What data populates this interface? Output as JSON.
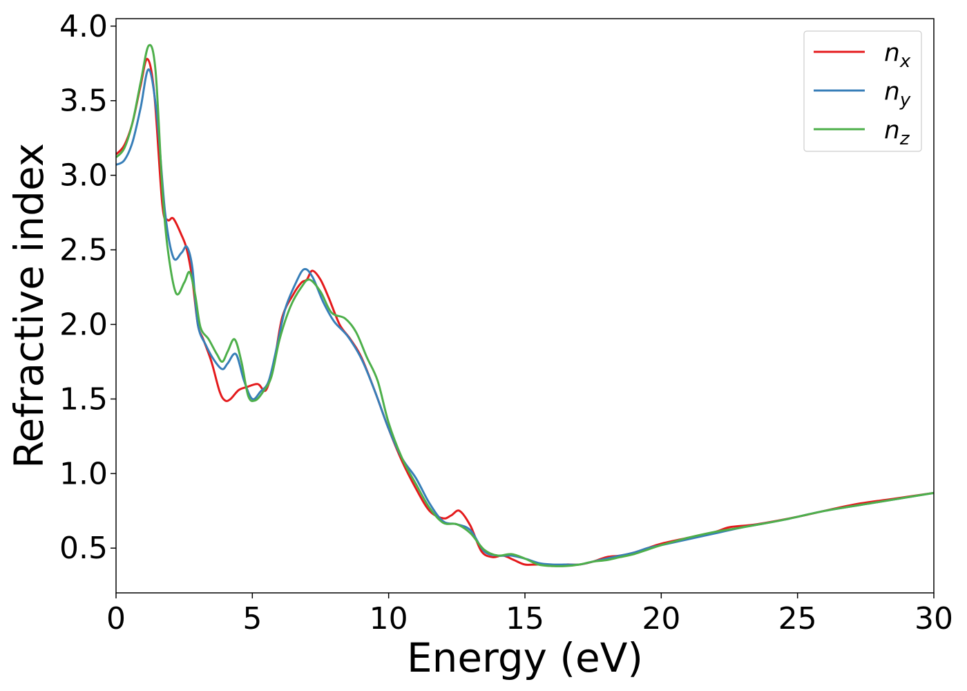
{
  "chart_data": {
    "type": "line",
    "title": "",
    "xlabel": "Energy (eV)",
    "ylabel": "Refractive index",
    "xlim": [
      0,
      30
    ],
    "ylim": [
      0.2,
      4.05
    ],
    "xticks": [
      0,
      5,
      10,
      15,
      20,
      25,
      30
    ],
    "yticks": [
      0.5,
      1.0,
      1.5,
      2.0,
      2.5,
      3.0,
      3.5,
      4.0
    ],
    "xtick_labels": [
      "0",
      "5",
      "10",
      "15",
      "20",
      "25",
      "30"
    ],
    "ytick_labels": [
      "0.5",
      "1.0",
      "1.5",
      "2.0",
      "2.5",
      "3.0",
      "3.5",
      "4.0"
    ],
    "grid": false,
    "legend_position": "top-right",
    "series": [
      {
        "name": "n",
        "subscript": "x",
        "color": "#e41a1c",
        "x": [
          0,
          0.3,
          0.6,
          0.9,
          1.15,
          1.4,
          1.7,
          1.9,
          2.1,
          2.4,
          2.6,
          2.8,
          3.0,
          3.2,
          3.5,
          3.8,
          4.0,
          4.2,
          4.5,
          4.8,
          5.2,
          5.5,
          5.8,
          6.1,
          6.5,
          6.8,
          7.0,
          7.2,
          7.5,
          7.8,
          8.2,
          8.6,
          9.0,
          9.5,
          10.0,
          10.5,
          11.0,
          11.5,
          12.0,
          12.3,
          12.6,
          13.0,
          13.4,
          13.8,
          14.2,
          14.6,
          15.0,
          15.5,
          16.0,
          16.5,
          17.0,
          17.5,
          18.0,
          18.5,
          19.0,
          19.5,
          20.0,
          21.0,
          22.0,
          22.5,
          23.5,
          25.0,
          27.0,
          28.5,
          30.0
        ],
        "y": [
          3.14,
          3.2,
          3.35,
          3.6,
          3.78,
          3.55,
          2.8,
          2.7,
          2.71,
          2.6,
          2.5,
          2.3,
          2.0,
          1.9,
          1.75,
          1.55,
          1.49,
          1.5,
          1.56,
          1.58,
          1.6,
          1.56,
          1.75,
          2.05,
          2.2,
          2.28,
          2.3,
          2.36,
          2.3,
          2.18,
          2.0,
          1.9,
          1.78,
          1.55,
          1.3,
          1.08,
          0.9,
          0.75,
          0.7,
          0.72,
          0.75,
          0.65,
          0.48,
          0.44,
          0.45,
          0.42,
          0.39,
          0.39,
          0.38,
          0.39,
          0.39,
          0.41,
          0.44,
          0.45,
          0.47,
          0.5,
          0.53,
          0.57,
          0.61,
          0.64,
          0.66,
          0.71,
          0.79,
          0.83,
          0.87
        ]
      },
      {
        "name": "n",
        "subscript": "y",
        "color": "#377eb8",
        "x": [
          0,
          0.3,
          0.6,
          0.9,
          1.2,
          1.5,
          1.8,
          2.1,
          2.4,
          2.6,
          2.8,
          3.0,
          3.3,
          3.6,
          3.9,
          4.1,
          4.4,
          4.7,
          5.0,
          5.3,
          5.6,
          5.9,
          6.2,
          6.6,
          6.9,
          7.2,
          7.6,
          8.0,
          8.5,
          9.0,
          9.5,
          10.0,
          10.5,
          11.0,
          11.5,
          12.0,
          12.5,
          13.0,
          13.5,
          14.0,
          14.5,
          15.0,
          15.5,
          16.0,
          16.5,
          17.0,
          17.5,
          18.0,
          18.5,
          19.0,
          19.5,
          20.0,
          21.0,
          22.0,
          23.0,
          24.5,
          26.0,
          28.0,
          30.0
        ],
        "y": [
          3.07,
          3.1,
          3.22,
          3.45,
          3.71,
          3.4,
          2.75,
          2.45,
          2.48,
          2.52,
          2.38,
          2.0,
          1.86,
          1.76,
          1.7,
          1.74,
          1.8,
          1.62,
          1.5,
          1.55,
          1.62,
          1.85,
          2.1,
          2.28,
          2.37,
          2.32,
          2.15,
          2.02,
          1.92,
          1.77,
          1.55,
          1.3,
          1.1,
          0.97,
          0.8,
          0.68,
          0.66,
          0.62,
          0.48,
          0.45,
          0.45,
          0.43,
          0.4,
          0.39,
          0.39,
          0.39,
          0.41,
          0.43,
          0.45,
          0.47,
          0.5,
          0.52,
          0.56,
          0.6,
          0.64,
          0.69,
          0.75,
          0.81,
          0.87
        ]
      },
      {
        "name": "n",
        "subscript": "z",
        "color": "#4daf4a",
        "x": [
          0,
          0.3,
          0.6,
          0.9,
          1.2,
          1.45,
          1.7,
          1.9,
          2.2,
          2.5,
          2.7,
          2.9,
          3.1,
          3.4,
          3.7,
          3.9,
          4.1,
          4.35,
          4.6,
          4.85,
          5.1,
          5.4,
          5.7,
          6.0,
          6.4,
          6.8,
          7.1,
          7.5,
          7.9,
          8.4,
          8.8,
          9.2,
          9.6,
          10.0,
          10.5,
          11.0,
          11.5,
          12.0,
          12.5,
          13.0,
          13.5,
          14.0,
          14.5,
          15.0,
          15.5,
          16.0,
          16.5,
          17.0,
          17.5,
          18.0,
          18.5,
          19.0,
          19.5,
          20.0,
          21.0,
          22.0,
          23.0,
          24.5,
          26.0,
          28.0,
          30.0
        ],
        "y": [
          3.12,
          3.18,
          3.35,
          3.62,
          3.87,
          3.7,
          2.9,
          2.5,
          2.21,
          2.28,
          2.35,
          2.2,
          1.98,
          1.9,
          1.8,
          1.75,
          1.82,
          1.9,
          1.75,
          1.52,
          1.49,
          1.55,
          1.65,
          1.9,
          2.12,
          2.25,
          2.3,
          2.22,
          2.08,
          2.04,
          1.95,
          1.78,
          1.62,
          1.34,
          1.1,
          0.93,
          0.77,
          0.67,
          0.66,
          0.6,
          0.49,
          0.45,
          0.46,
          0.43,
          0.39,
          0.38,
          0.38,
          0.39,
          0.41,
          0.42,
          0.44,
          0.46,
          0.49,
          0.52,
          0.57,
          0.61,
          0.64,
          0.69,
          0.75,
          0.81,
          0.87
        ]
      }
    ]
  }
}
